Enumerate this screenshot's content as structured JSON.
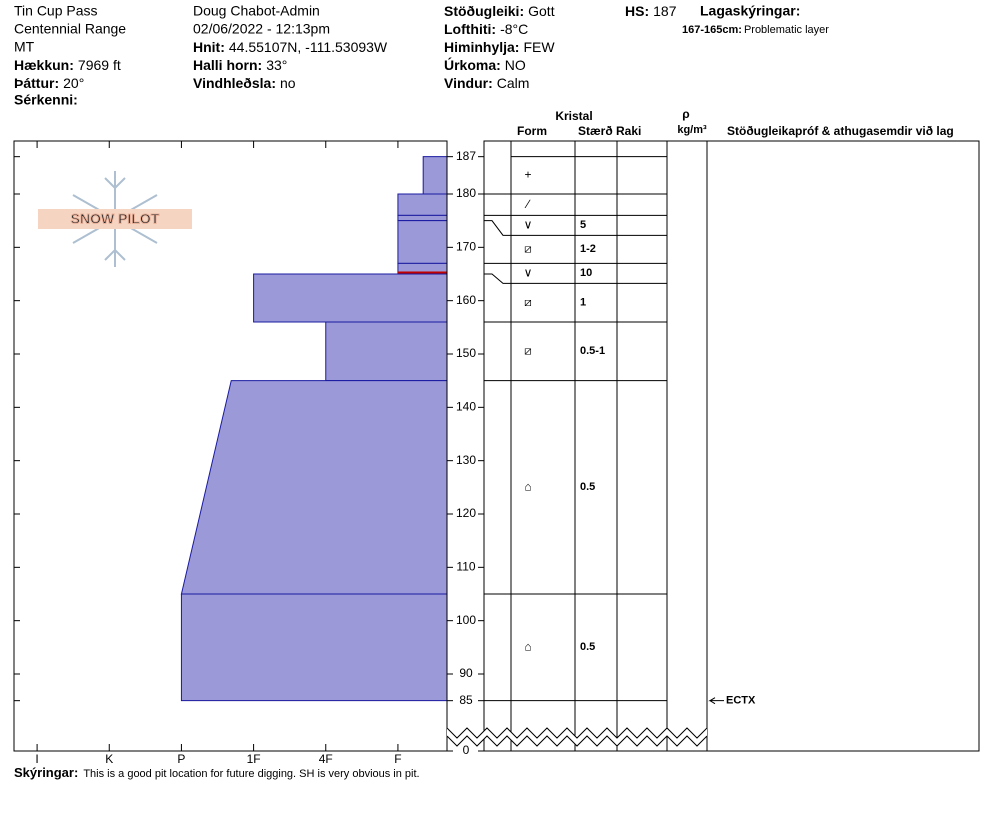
{
  "header": {
    "site": "Tin Cup Pass",
    "range": "Centennial Range",
    "state": "MT",
    "elevation": {
      "label": "Hækkun:",
      "value": "7969 ft"
    },
    "aspect": {
      "label": "Þáttur:",
      "value": "20°"
    },
    "features": {
      "label": "Sérkenni:"
    },
    "observer": "Doug Chabot-Admin",
    "datetime": "02/06/2022 - 12:13pm",
    "coordinates": {
      "label": "Hnit:",
      "value": "44.55107N, -111.53093W"
    },
    "slope_angle": {
      "label": "Halli horn:",
      "value": "33°"
    },
    "wind_loading": {
      "label": "Vindhleðsla:",
      "value": "no"
    },
    "stability": {
      "label": "Stöðugleiki:",
      "value": "Gott"
    },
    "air_temp": {
      "label": "Lofthiti:",
      "value": "-8°C"
    },
    "sky": {
      "label": "Himinhylja:",
      "value": "FEW"
    },
    "precip": {
      "label": "Úrkoma:",
      "value": "NO"
    },
    "wind": {
      "label": "Vindur:",
      "value": "Calm"
    },
    "hs": {
      "label": "HS:",
      "value": 187
    },
    "layer_notes": {
      "title": "Lagaskýringar:",
      "items": [
        {
          "range": "167-165cm:",
          "text": "Problematic layer"
        }
      ]
    }
  },
  "logo": "SNOW PILOT",
  "profile": {
    "height_ticks": [
      187,
      180,
      170,
      160,
      150,
      140,
      130,
      120,
      110,
      100,
      90,
      85,
      0
    ],
    "hardness_lim": [
      6.32,
      0.32
    ],
    "hardness_ticks": [
      {
        "value": 6,
        "label": "I"
      },
      {
        "value": 5,
        "label": "K"
      },
      {
        "value": 4,
        "label": "P"
      },
      {
        "value": 3,
        "label": "1F"
      },
      {
        "value": 2,
        "label": "4F"
      },
      {
        "value": 1,
        "label": "F"
      }
    ],
    "color": "#9b99d8",
    "columns": {
      "crystal": "Kristal",
      "form": "Form",
      "size": "Stærð",
      "moisture": "Raki",
      "density_symbol": "ρ",
      "density_unit": "kg/m³",
      "tests": "Stöðugleikapróf & athugasemdir við lag"
    },
    "layers": [
      {
        "top": 187,
        "bottom": 180,
        "hardness_top": 0.65,
        "hardness_bottom": 0.65,
        "form": "+"
      },
      {
        "top": 180,
        "bottom": 176,
        "hardness_top": 1,
        "hardness_bottom": 1,
        "form": "∕"
      },
      {
        "top": 176,
        "bottom": 175,
        "hardness_top": 1,
        "hardness_bottom": 1,
        "form": "∨",
        "size": "5"
      },
      {
        "top": 175,
        "bottom": 167,
        "hardness_top": 1,
        "hardness_bottom": 1,
        "form": "⧄",
        "size": "1-2"
      },
      {
        "top": 167,
        "bottom": 165,
        "hardness_top": 1,
        "hardness_bottom": 1,
        "form": "∨",
        "size": "10",
        "edge_color": "#c00000"
      },
      {
        "top": 165,
        "bottom": 156,
        "hardness_top": 3,
        "hardness_bottom": 3,
        "form": "⧄",
        "size": "1"
      },
      {
        "top": 156,
        "bottom": 145,
        "hardness_top": 2,
        "hardness_bottom": 2,
        "form": "⧄",
        "size": "0.5-1"
      },
      {
        "top": 145,
        "bottom": 105,
        "hardness_top": 3.31,
        "hardness_bottom": 4,
        "form": "⌂",
        "size": "0.5"
      },
      {
        "top": 105,
        "bottom": 85,
        "hardness_top": 4,
        "hardness_bottom": 4,
        "form": "⌂",
        "size": "0.5"
      }
    ],
    "tests": [
      {
        "height": 85,
        "label": "ECTX"
      }
    ]
  },
  "footer": {
    "label": "Skýringar:",
    "text": "This is a good pit location for future digging. SH is very obvious in pit."
  }
}
